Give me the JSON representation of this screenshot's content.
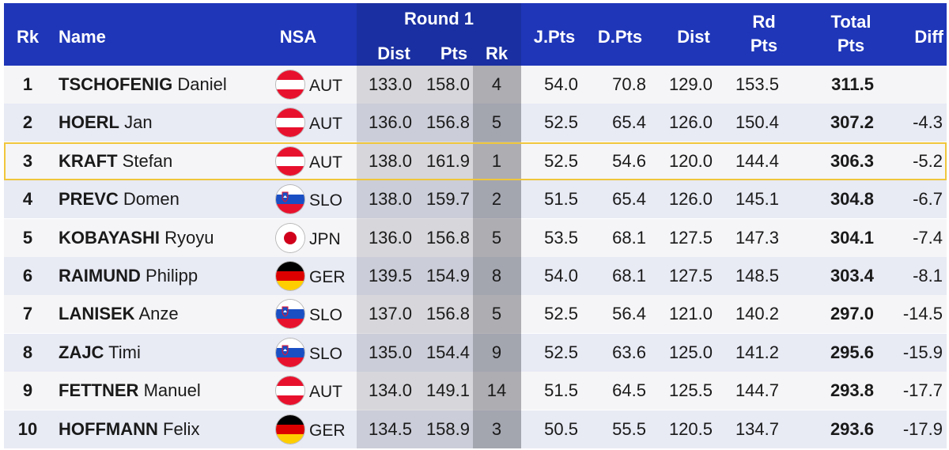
{
  "header": {
    "rk": "Rk",
    "name": "Name",
    "nsa": "NSA",
    "round": "Round 1",
    "dist": "Dist",
    "pts": "Pts",
    "round_rk": "Rk",
    "jpts": "J.Pts",
    "dpts": "D.Pts",
    "dist2": "Dist",
    "rd_line1": "Rd",
    "rd_line2": "Pts",
    "total_line1": "Total",
    "total_line2": "Pts",
    "diff": "Diff"
  },
  "colors": {
    "header_bg": "#1f36b8",
    "highlight_border": "#f0c63c"
  },
  "rows": [
    {
      "rk": "1",
      "last": "TSCHOFENIG",
      "first": "Daniel",
      "flag": "austria-flag-icon",
      "nsa": "AUT",
      "r1_dist": "133.0",
      "r1_pts": "158.0",
      "r1_rk": "4",
      "jpts": "54.0",
      "dpts": "70.8",
      "dist": "129.0",
      "rdpts": "153.5",
      "total": "311.5",
      "diff": ""
    },
    {
      "rk": "2",
      "last": "HOERL",
      "first": "Jan",
      "flag": "austria-flag-icon",
      "nsa": "AUT",
      "r1_dist": "136.0",
      "r1_pts": "156.8",
      "r1_rk": "5",
      "jpts": "52.5",
      "dpts": "65.4",
      "dist": "126.0",
      "rdpts": "150.4",
      "total": "307.2",
      "diff": "-4.3"
    },
    {
      "rk": "3",
      "last": "KRAFT",
      "first": "Stefan",
      "flag": "austria-flag-icon",
      "nsa": "AUT",
      "r1_dist": "138.0",
      "r1_pts": "161.9",
      "r1_rk": "1",
      "jpts": "52.5",
      "dpts": "54.6",
      "dist": "120.0",
      "rdpts": "144.4",
      "total": "306.3",
      "diff": "-5.2"
    },
    {
      "rk": "4",
      "last": "PREVC",
      "first": "Domen",
      "flag": "slovenia-flag-icon",
      "nsa": "SLO",
      "r1_dist": "138.0",
      "r1_pts": "159.7",
      "r1_rk": "2",
      "jpts": "51.5",
      "dpts": "65.4",
      "dist": "126.0",
      "rdpts": "145.1",
      "total": "304.8",
      "diff": "-6.7"
    },
    {
      "rk": "5",
      "last": "KOBAYASHI",
      "first": "Ryoyu",
      "flag": "japan-flag-icon",
      "nsa": "JPN",
      "r1_dist": "136.0",
      "r1_pts": "156.8",
      "r1_rk": "5",
      "jpts": "53.5",
      "dpts": "68.1",
      "dist": "127.5",
      "rdpts": "147.3",
      "total": "304.1",
      "diff": "-7.4"
    },
    {
      "rk": "6",
      "last": "RAIMUND",
      "first": "Philipp",
      "flag": "germany-flag-icon",
      "nsa": "GER",
      "r1_dist": "139.5",
      "r1_pts": "154.9",
      "r1_rk": "8",
      "jpts": "54.0",
      "dpts": "68.1",
      "dist": "127.5",
      "rdpts": "148.5",
      "total": "303.4",
      "diff": "-8.1"
    },
    {
      "rk": "7",
      "last": "LANISEK",
      "first": "Anze",
      "flag": "slovenia-flag-icon",
      "nsa": "SLO",
      "r1_dist": "137.0",
      "r1_pts": "156.8",
      "r1_rk": "5",
      "jpts": "52.5",
      "dpts": "56.4",
      "dist": "121.0",
      "rdpts": "140.2",
      "total": "297.0",
      "diff": "-14.5"
    },
    {
      "rk": "8",
      "last": "ZAJC",
      "first": "Timi",
      "flag": "slovenia-flag-icon",
      "nsa": "SLO",
      "r1_dist": "135.0",
      "r1_pts": "154.4",
      "r1_rk": "9",
      "jpts": "52.5",
      "dpts": "63.6",
      "dist": "125.0",
      "rdpts": "141.2",
      "total": "295.6",
      "diff": "-15.9"
    },
    {
      "rk": "9",
      "last": "FETTNER",
      "first": "Manuel",
      "flag": "austria-flag-icon",
      "nsa": "AUT",
      "r1_dist": "134.0",
      "r1_pts": "149.1",
      "r1_rk": "14",
      "jpts": "51.5",
      "dpts": "64.5",
      "dist": "125.5",
      "rdpts": "144.7",
      "total": "293.8",
      "diff": "-17.7"
    },
    {
      "rk": "10",
      "last": "HOFFMANN",
      "first": "Felix",
      "flag": "germany-flag-icon",
      "nsa": "GER",
      "r1_dist": "134.5",
      "r1_pts": "158.9",
      "r1_rk": "3",
      "jpts": "50.5",
      "dpts": "55.5",
      "dist": "120.5",
      "rdpts": "134.7",
      "total": "293.6",
      "diff": "-17.9"
    }
  ]
}
